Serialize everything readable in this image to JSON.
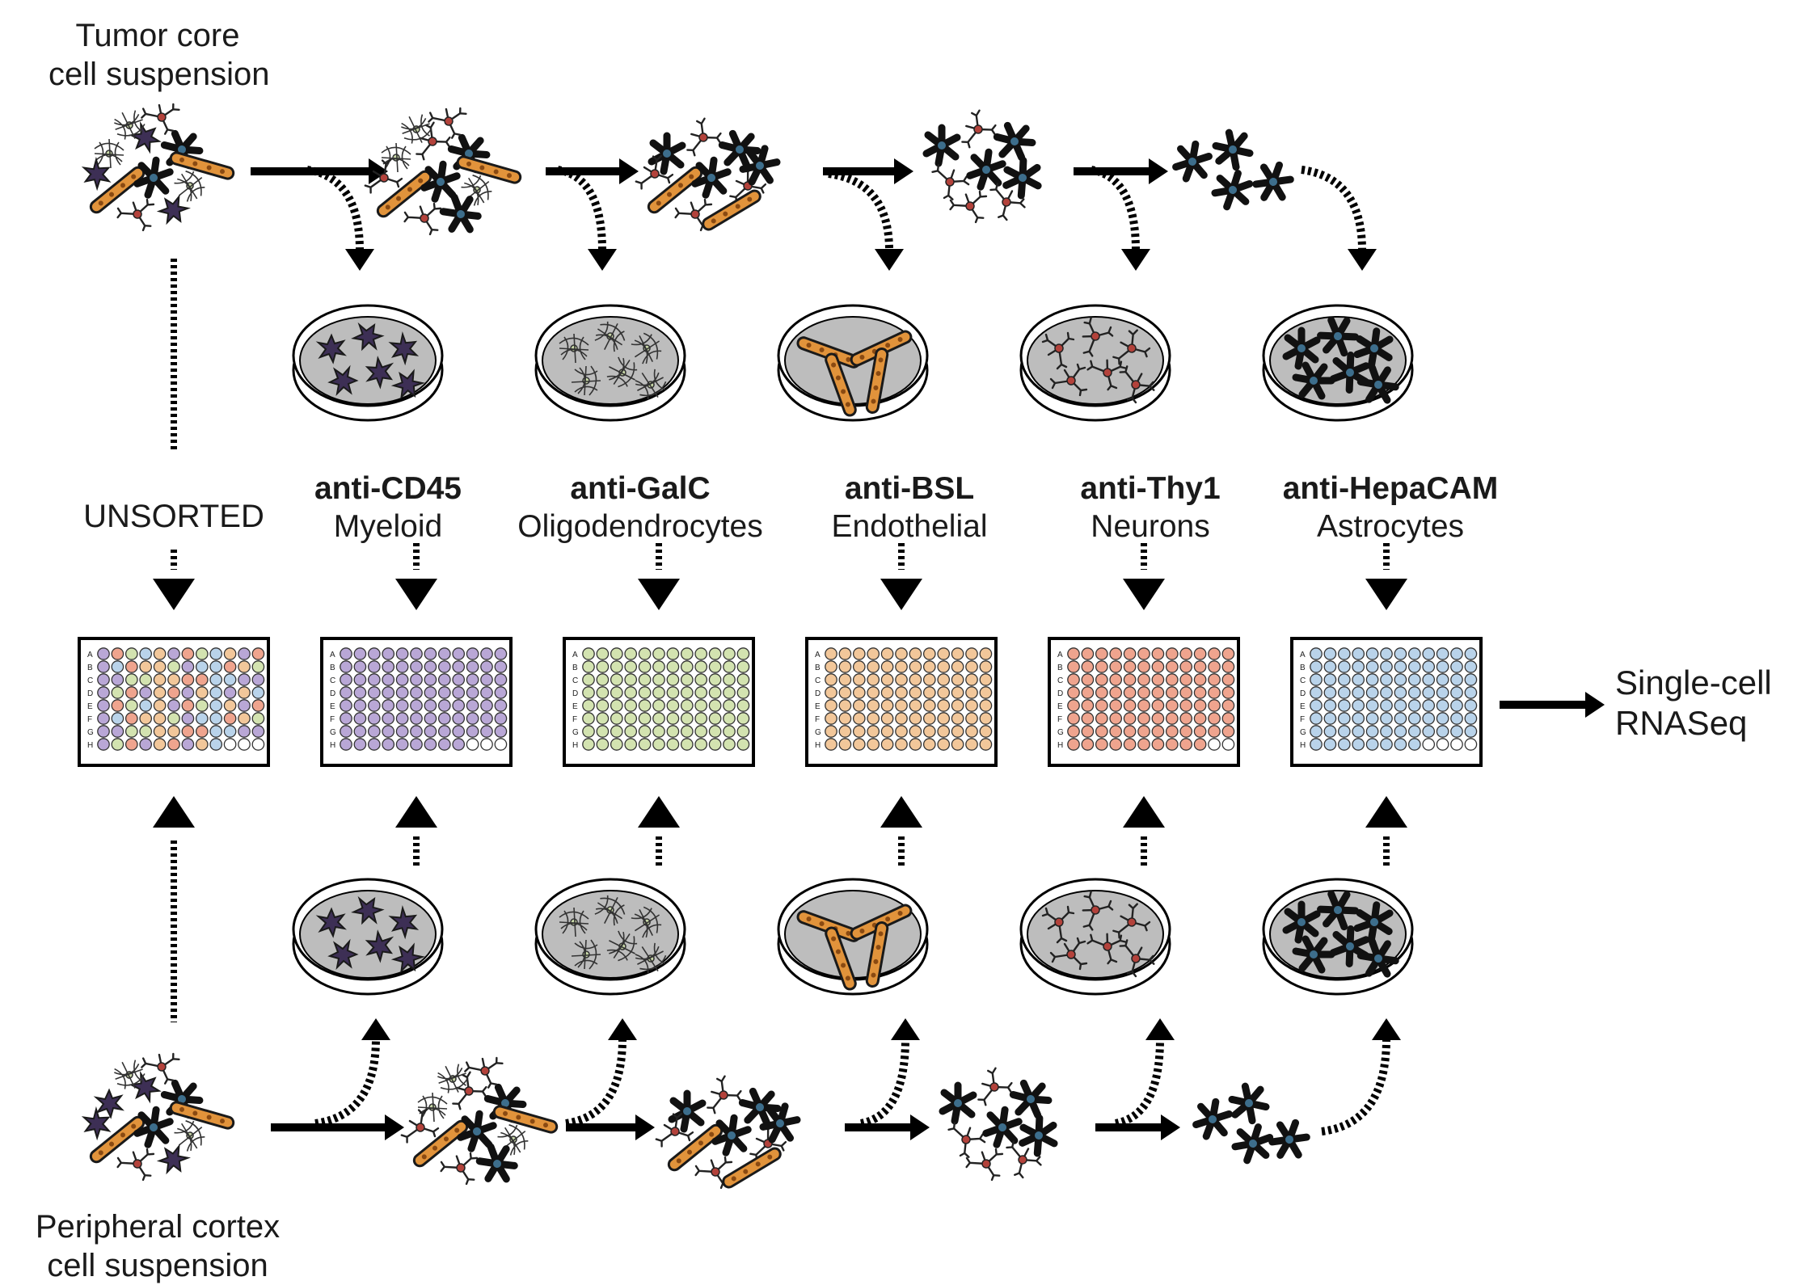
{
  "top_source": {
    "line1": "Tumor core",
    "line2": "cell suspension"
  },
  "bottom_source": {
    "line1": "Peripheral cortex",
    "line2": "cell suspension"
  },
  "unsorted_label": "UNSORTED",
  "output": {
    "line1": "Single-cell",
    "line2": "RNASeq"
  },
  "well_rows": [
    "A",
    "B",
    "C",
    "D",
    "E",
    "F",
    "G",
    "H"
  ],
  "columns": [
    {
      "antibody": "anti-CD45",
      "cell_type": "Myeloid",
      "dish_cell": "myeloid",
      "plate_color": "#b9a7d6",
      "filled_wells": 93
    },
    {
      "antibody": "anti-GalC",
      "cell_type": "Oligodendrocytes",
      "dish_cell": "oligodendrocyte",
      "plate_color": "#d3e3b0",
      "filled_wells": 96
    },
    {
      "antibody": "anti-BSL",
      "cell_type": "Endothelial",
      "dish_cell": "endothelial",
      "plate_color": "#f2c79a",
      "filled_wells": 96
    },
    {
      "antibody": "anti-Thy1",
      "cell_type": "Neurons",
      "dish_cell": "neuron",
      "plate_color": "#efa48e",
      "filled_wells": 94
    },
    {
      "antibody": "anti-HepaCAM",
      "cell_type": "Astrocytes",
      "dish_cell": "astrocyte",
      "plate_color": "#b9d3ea",
      "filled_wells": 92
    }
  ],
  "unsorted_plate": {
    "palette": [
      "#b9a7d6",
      "#d3e3b0",
      "#f2c79a",
      "#efa48e",
      "#b9d3ea"
    ],
    "filled_wells": 93
  },
  "colors": {
    "dish_fill": "#bdbdbd",
    "endothelial": "#e1933b",
    "astrocyte_center": "#3d6e8c",
    "myeloid": "#4b3a63",
    "neuron_center": "#b3423b",
    "oligo": "#c9d9a8"
  }
}
